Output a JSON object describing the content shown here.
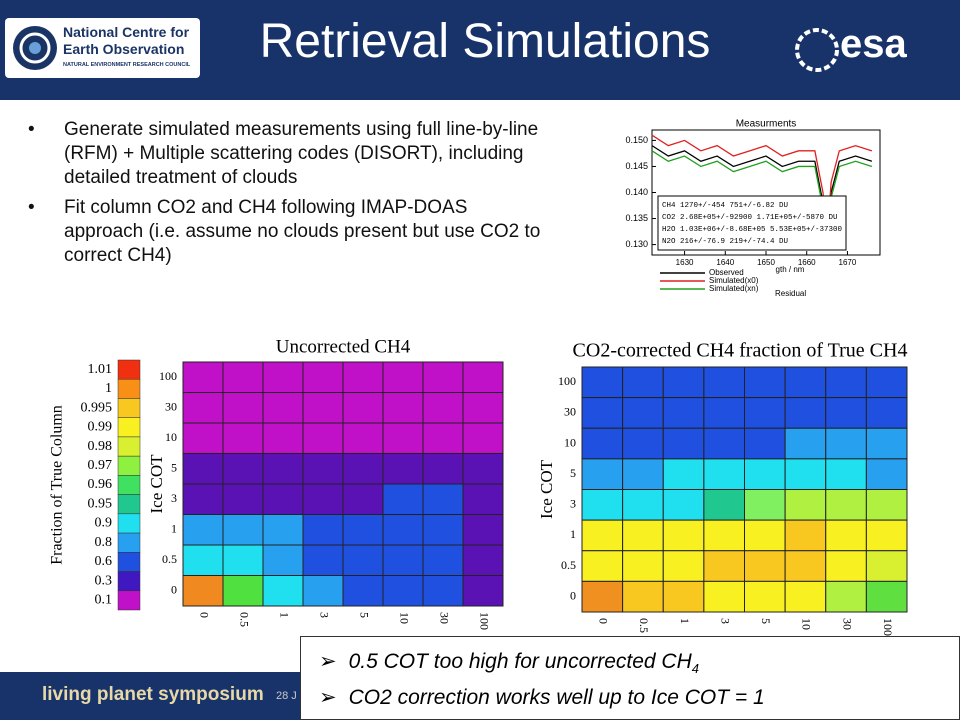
{
  "header": {
    "title": "Retrieval Simulations",
    "logo_lines": [
      "National Centre for",
      "Earth Observation"
    ],
    "logo_sub": "NATURAL ENVIRONMENT RESEARCH COUNCIL",
    "esa": "esa"
  },
  "bullets": [
    "Generate simulated measurements using full line-by-line (RFM) + Multiple scattering codes (DISORT), including detailed treatment of clouds",
    "Fit column CO2 and CH4 following IMAP-DOAS approach (i.e. assume no clouds present but use CO2 to correct CH4)"
  ],
  "chart_data": [
    {
      "type": "line",
      "title": "Measurments",
      "x_label": "gth / nm",
      "x": [
        1622,
        1626,
        1630,
        1634,
        1638,
        1642,
        1646,
        1650,
        1654,
        1658,
        1662,
        1664,
        1665,
        1666,
        1668,
        1672,
        1676
      ],
      "series": [
        {
          "name": "Observed",
          "color": "#000000",
          "values": [
            0.149,
            0.147,
            0.148,
            0.146,
            0.147,
            0.145,
            0.146,
            0.147,
            0.145,
            0.146,
            0.146,
            0.138,
            0.13,
            0.14,
            0.146,
            0.147,
            0.146
          ]
        },
        {
          "name": "Simulated(x0)",
          "color": "#e02020",
          "values": [
            0.151,
            0.149,
            0.15,
            0.148,
            0.149,
            0.147,
            0.148,
            0.149,
            0.147,
            0.148,
            0.148,
            0.14,
            0.131,
            0.142,
            0.148,
            0.149,
            0.148
          ]
        },
        {
          "name": "Simulated(xn)",
          "color": "#20a020",
          "values": [
            0.148,
            0.146,
            0.147,
            0.145,
            0.146,
            0.144,
            0.145,
            0.146,
            0.144,
            0.145,
            0.145,
            0.137,
            0.129,
            0.139,
            0.145,
            0.146,
            0.145
          ]
        }
      ],
      "extra_legend": "Residual",
      "xlim": [
        1622,
        1678
      ],
      "ylim": [
        0.128,
        0.152
      ],
      "xticks": [
        1630,
        1640,
        1650,
        1660,
        1670
      ],
      "yticks": [
        {
          "value": 0.15,
          "label": "0.150"
        },
        0.145,
        {
          "value": 0.14,
          "label": "0.140"
        },
        0.135,
        {
          "value": 0.13,
          "label": "0.130"
        }
      ],
      "annotation_lines": [
        "CH4 1270+/-454 751+/-6.82 DU",
        "CO2 2.68E+05+/-92900 1.71E+05+/-5870 DU",
        "H2O 1.03E+06+/-8.68E+05 5.53E+05+/-37300",
        "N2O 216+/-76.9 219+/-74.4 DU"
      ]
    },
    {
      "type": "colorbar",
      "y_label": "Fraction of True Column",
      "labels": [
        "1.01",
        "1",
        "0.995",
        "0.99",
        "0.98",
        "0.97",
        "0.96",
        "0.95",
        "0.9",
        "0.8",
        "0.6",
        "0.3",
        "0.1"
      ],
      "colors": [
        "#f03010",
        "#f89018",
        "#f8c820",
        "#f8f020",
        "#d8f030",
        "#90f040",
        "#40e060",
        "#20c890",
        "#20e0f0",
        "#28a0f0",
        "#2050e0",
        "#4018c0",
        "#c010c8"
      ]
    },
    {
      "type": "heatmap",
      "title": "Uncorrected CH4",
      "y_label": "Ice COT",
      "row_labels": [
        "100",
        "30",
        "10",
        "5",
        "3",
        "1",
        "0.5",
        "0"
      ],
      "col_labels": [
        "0",
        "0.5",
        "1",
        "3",
        "5",
        "10",
        "30",
        "100"
      ],
      "cells": [
        [
          "#c010c8",
          "#c010c8",
          "#c010c8",
          "#c010c8",
          "#c010c8",
          "#c010c8",
          "#c010c8",
          "#c010c8"
        ],
        [
          "#c010c8",
          "#c010c8",
          "#c010c8",
          "#c010c8",
          "#c010c8",
          "#c010c8",
          "#c010c8",
          "#c010c8"
        ],
        [
          "#c010c8",
          "#c010c8",
          "#c010c8",
          "#c010c8",
          "#c010c8",
          "#c010c8",
          "#c010c8",
          "#c010c8"
        ],
        [
          "#5a12b4",
          "#5a12b4",
          "#5a12b4",
          "#5a12b4",
          "#5a12b4",
          "#5a12b4",
          "#5a12b4",
          "#5a12b4"
        ],
        [
          "#5a12b4",
          "#5a12b4",
          "#5a12b4",
          "#5a12b4",
          "#5a12b4",
          "#2050e0",
          "#2050e0",
          "#5a12b4"
        ],
        [
          "#28a0f0",
          "#28a0f0",
          "#28a0f0",
          "#2050e0",
          "#2050e0",
          "#2050e0",
          "#2050e0",
          "#5a12b4"
        ],
        [
          "#20e0f0",
          "#20e0f0",
          "#28a0f0",
          "#2050e0",
          "#2050e0",
          "#2050e0",
          "#2050e0",
          "#5a12b4"
        ],
        [
          "#f08a20",
          "#50e040",
          "#20e0f0",
          "#28a0f0",
          "#2050e0",
          "#2050e0",
          "#2050e0",
          "#5a12b4"
        ]
      ]
    },
    {
      "type": "heatmap",
      "title": "CO2-corrected CH4 fraction of True CH4",
      "y_label": "Ice COT",
      "row_labels": [
        "100",
        "30",
        "10",
        "5",
        "3",
        "1",
        "0.5",
        "0"
      ],
      "col_labels": [
        "0",
        "0.5",
        "1",
        "3",
        "5",
        "10",
        "30",
        "100"
      ],
      "cells": [
        [
          "#2050e0",
          "#2050e0",
          "#2050e0",
          "#2050e0",
          "#2050e0",
          "#2050e0",
          "#2050e0",
          "#2050e0"
        ],
        [
          "#2050e0",
          "#2050e0",
          "#2050e0",
          "#2050e0",
          "#2050e0",
          "#2050e0",
          "#2050e0",
          "#2050e0"
        ],
        [
          "#2050e0",
          "#2050e0",
          "#2050e0",
          "#2050e0",
          "#2050e0",
          "#28a0f0",
          "#28a0f0",
          "#28a0f0"
        ],
        [
          "#28a0f0",
          "#28a0f0",
          "#20e0f0",
          "#20e0f0",
          "#20e0f0",
          "#20e0f0",
          "#20e0f0",
          "#28a0f0"
        ],
        [
          "#20e0f0",
          "#20e0f0",
          "#20e0f0",
          "#20c890",
          "#80f060",
          "#b0f040",
          "#b0f040",
          "#b0f040"
        ],
        [
          "#f8f020",
          "#f8f020",
          "#f8f020",
          "#f8f020",
          "#f8f020",
          "#f8c820",
          "#f8f020",
          "#f8f020"
        ],
        [
          "#f8f020",
          "#f8f020",
          "#f8f020",
          "#f8c820",
          "#f8c820",
          "#f8c820",
          "#f8f020",
          "#d8f030"
        ],
        [
          "#f09020",
          "#f8c820",
          "#f8c820",
          "#f8f020",
          "#f8f020",
          "#f8f020",
          "#b0f040",
          "#60e040"
        ]
      ]
    }
  ],
  "conclusions": [
    {
      "text": "0.5 COT too high for uncorrected CH",
      "sub": "4"
    },
    {
      "text": "CO2 correction works well up to Ice COT = 1"
    }
  ],
  "footer": {
    "name": "living planet symposium",
    "date": "28 J"
  }
}
